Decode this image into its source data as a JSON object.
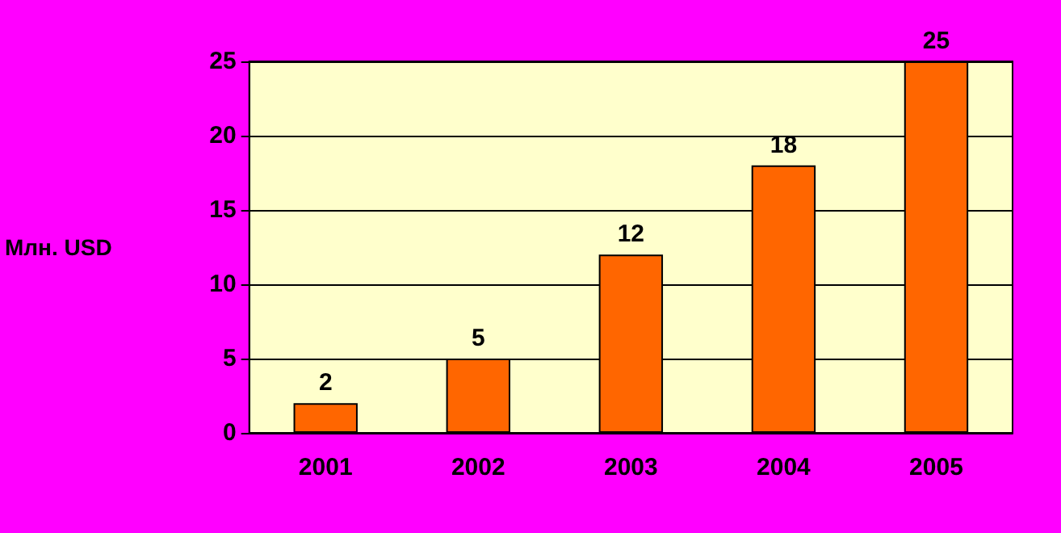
{
  "chart_data": {
    "type": "bar",
    "ylabel": "Млн. USD",
    "categories": [
      "2001",
      "2002",
      "2003",
      "2004",
      "2005"
    ],
    "values": [
      2,
      5,
      12,
      18,
      25
    ],
    "color": "#ff6600",
    "ylim": [
      0,
      25
    ],
    "yticks": [
      0,
      5,
      10,
      15,
      20,
      25
    ],
    "grid": "y",
    "data_labels": true
  }
}
